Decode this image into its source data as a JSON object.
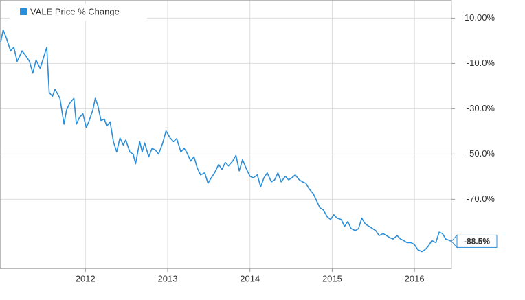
{
  "chart_data": {
    "type": "line",
    "series": [
      {
        "name": "VALE Price % Change",
        "color": "#2c8ed8",
        "x": [
          2010.97,
          2011.0,
          2011.04,
          2011.09,
          2011.13,
          2011.17,
          2011.23,
          2011.28,
          2011.32,
          2011.36,
          2011.4,
          2011.45,
          2011.49,
          2011.53,
          2011.56,
          2011.6,
          2011.63,
          2011.69,
          2011.74,
          2011.77,
          2011.81,
          2011.86,
          2011.89,
          2011.93,
          2011.97,
          2012.01,
          2012.04,
          2012.09,
          2012.12,
          2012.15,
          2012.19,
          2012.23,
          2012.26,
          2012.3,
          2012.34,
          2012.38,
          2012.42,
          2012.46,
          2012.49,
          2012.54,
          2012.58,
          2012.61,
          2012.66,
          2012.69,
          2012.72,
          2012.77,
          2012.81,
          2012.85,
          2012.89,
          2012.94,
          2012.98,
          2013.03,
          2013.07,
          2013.11,
          2013.16,
          2013.2,
          2013.23,
          2013.28,
          2013.32,
          2013.36,
          2013.4,
          2013.45,
          2013.49,
          2013.53,
          2013.57,
          2013.62,
          2013.66,
          2013.7,
          2013.74,
          2013.79,
          2013.83,
          2013.87,
          2013.91,
          2013.96,
          2014.0,
          2014.04,
          2014.09,
          2014.13,
          2014.17,
          2014.21,
          2014.26,
          2014.3,
          2014.34,
          2014.38,
          2014.43,
          2014.47,
          2014.51,
          2014.55,
          2014.6,
          2014.64,
          2014.68,
          2014.72,
          2014.77,
          2014.81,
          2014.85,
          2014.89,
          2014.94,
          2014.98,
          2015.02,
          2015.06,
          2015.11,
          2015.15,
          2015.19,
          2015.23,
          2015.28,
          2015.32,
          2015.36,
          2015.4,
          2015.45,
          2015.49,
          2015.53,
          2015.57,
          2015.62,
          2015.66,
          2015.7,
          2015.74,
          2015.79,
          2015.83,
          2015.87,
          2015.91,
          2015.96,
          2016.0,
          2016.04,
          2016.09,
          2016.13,
          2016.17,
          2016.21,
          2016.26,
          2016.3,
          2016.34,
          2016.38,
          2016.43,
          2016.44
        ],
        "values": [
          -0.5,
          4.8,
          1.1,
          -4.5,
          -2.9,
          -9.1,
          -4.5,
          -6.9,
          -9.1,
          -14.3,
          -8.5,
          -12.2,
          -7.5,
          -2.9,
          -22.9,
          -24.5,
          -21.4,
          -25.4,
          -36.8,
          -30.6,
          -27.5,
          -25.4,
          -36.8,
          -33.7,
          -32.2,
          -38.3,
          -35.8,
          -30.6,
          -25.4,
          -28.5,
          -35.2,
          -34.6,
          -37.7,
          -35.8,
          -44.5,
          -49.1,
          -42.9,
          -46.0,
          -43.8,
          -49.1,
          -50.0,
          -54.3,
          -44.5,
          -49.1,
          -45.1,
          -51.2,
          -47.5,
          -48.2,
          -50.0,
          -45.1,
          -39.8,
          -42.9,
          -44.5,
          -43.2,
          -49.1,
          -47.5,
          -49.1,
          -53.1,
          -51.2,
          -56.2,
          -59.2,
          -58.3,
          -62.9,
          -60.5,
          -58.3,
          -54.6,
          -56.8,
          -53.7,
          -55.2,
          -53.1,
          -50.6,
          -57.4,
          -52.5,
          -56.8,
          -59.8,
          -60.5,
          -59.2,
          -64.5,
          -60.5,
          -58.3,
          -62.3,
          -61.4,
          -58.3,
          -62.3,
          -59.8,
          -61.4,
          -60.5,
          -59.2,
          -61.4,
          -62.3,
          -62.9,
          -65.4,
          -67.5,
          -70.6,
          -73.7,
          -74.6,
          -77.7,
          -78.9,
          -76.8,
          -78.3,
          -78.9,
          -82.0,
          -79.8,
          -82.9,
          -83.8,
          -82.9,
          -78.3,
          -80.8,
          -82.0,
          -82.9,
          -83.8,
          -86.0,
          -85.1,
          -86.0,
          -86.9,
          -87.5,
          -86.0,
          -87.5,
          -88.2,
          -89.1,
          -89.1,
          -90.0,
          -92.2,
          -93.1,
          -92.2,
          -90.6,
          -88.2,
          -89.1,
          -84.5,
          -85.1,
          -87.5,
          -88.2,
          -88.5
        ]
      }
    ],
    "end_label": {
      "value": -88.5,
      "label": "-88.5%"
    },
    "xlim": [
      2010.97,
      2016.45
    ],
    "xticks": [
      2012,
      2013,
      2014,
      2015,
      2016
    ],
    "ylim": [
      -100.5,
      17.7
    ],
    "yticks": [
      {
        "value": 10,
        "label": "10.00%"
      },
      {
        "value": -10,
        "label": "-10.0%"
      },
      {
        "value": -30,
        "label": "-30.0%"
      },
      {
        "value": -50,
        "label": "-50.0%"
      },
      {
        "value": -70,
        "label": "-70.0%"
      }
    ],
    "grid": true
  }
}
